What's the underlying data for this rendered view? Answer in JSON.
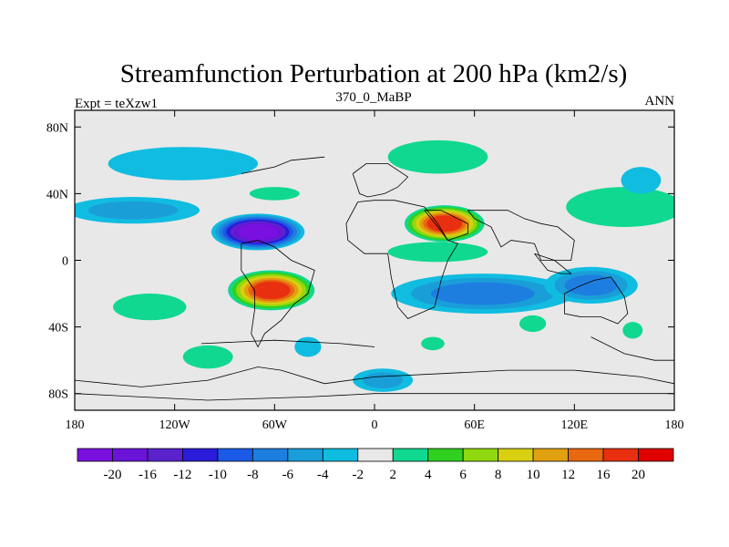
{
  "chart_data": {
    "type": "heatmap",
    "title": "Streamfunction Perturbation at 200 hPa (km2/s)",
    "left_label": "Expt = teXzw1",
    "center_label": "370_0_MaBP",
    "right_label": "ANN",
    "xlim": [
      -180,
      180
    ],
    "ylim": [
      -90,
      90
    ],
    "x_ticks": [
      {
        "value": -180,
        "label": "180"
      },
      {
        "value": -120,
        "label": "120W"
      },
      {
        "value": -60,
        "label": "60W"
      },
      {
        "value": 0,
        "label": "0"
      },
      {
        "value": 60,
        "label": "60E"
      },
      {
        "value": 120,
        "label": "120E"
      },
      {
        "value": 180,
        "label": "180"
      }
    ],
    "y_ticks": [
      {
        "value": 80,
        "label": "80N"
      },
      {
        "value": 40,
        "label": "40N"
      },
      {
        "value": 0,
        "label": "0"
      },
      {
        "value": -40,
        "label": "40S"
      },
      {
        "value": -80,
        "label": "80S"
      }
    ],
    "contour_levels": [
      -20,
      -16,
      -12,
      -10,
      -8,
      -6,
      -4,
      -2,
      2,
      4,
      6,
      8,
      10,
      12,
      16,
      20
    ],
    "contour_labels": [
      "-20",
      "-16",
      "-12",
      "-10",
      "-8",
      "-6",
      "-4",
      "-2",
      "2",
      "4",
      "6",
      "8",
      "10",
      "12",
      "16",
      "20"
    ],
    "colors": [
      "#7a10e0",
      "#6a14d8",
      "#5a22cc",
      "#2a1cd8",
      "#1a5ae6",
      "#1e7ee0",
      "#1a9ed8",
      "#10bce0",
      "#e8e8e8",
      "#10d890",
      "#30d020",
      "#90d810",
      "#d8d010",
      "#e0a010",
      "#e86810",
      "#e83010",
      "#e00000"
    ],
    "features": [
      {
        "lon": -70,
        "lat": 17,
        "value": -20,
        "sx": 28,
        "sy": 11
      },
      {
        "lon": -62,
        "lat": -18,
        "value": 20,
        "sx": 26,
        "sy": 12
      },
      {
        "lon": 42,
        "lat": 22,
        "value": 17,
        "sx": 24,
        "sy": 11
      },
      {
        "lon": 65,
        "lat": -20,
        "value": -6,
        "sx": 55,
        "sy": 12
      },
      {
        "lon": 130,
        "lat": -15,
        "value": -7,
        "sx": 28,
        "sy": 11
      },
      {
        "lon": -145,
        "lat": 30,
        "value": -5,
        "sx": 40,
        "sy": 8
      },
      {
        "lon": -115,
        "lat": 58,
        "value": -3,
        "sx": 45,
        "sy": 10
      },
      {
        "lon": 38,
        "lat": 62,
        "value": 4,
        "sx": 30,
        "sy": 10
      },
      {
        "lon": 150,
        "lat": 32,
        "value": 4,
        "sx": 35,
        "sy": 12
      },
      {
        "lon": 160,
        "lat": 48,
        "value": -3,
        "sx": 12,
        "sy": 8
      },
      {
        "lon": -135,
        "lat": -28,
        "value": 4,
        "sx": 22,
        "sy": 8
      },
      {
        "lon": -100,
        "lat": -58,
        "value": 4,
        "sx": 15,
        "sy": 7
      },
      {
        "lon": 5,
        "lat": -72,
        "value": -4,
        "sx": 18,
        "sy": 7
      },
      {
        "lon": 95,
        "lat": -38,
        "value": 3,
        "sx": 8,
        "sy": 5
      },
      {
        "lon": 155,
        "lat": -42,
        "value": 3,
        "sx": 6,
        "sy": 5
      },
      {
        "lon": -40,
        "lat": -52,
        "value": -3,
        "sx": 8,
        "sy": 6
      },
      {
        "lon": 35,
        "lat": -50,
        "value": 3,
        "sx": 7,
        "sy": 4
      },
      {
        "lon": -60,
        "lat": 40,
        "value": 3,
        "sx": 15,
        "sy": 4
      },
      {
        "lon": 38,
        "lat": 5,
        "value": 3,
        "sx": 30,
        "sy": 6
      }
    ]
  }
}
